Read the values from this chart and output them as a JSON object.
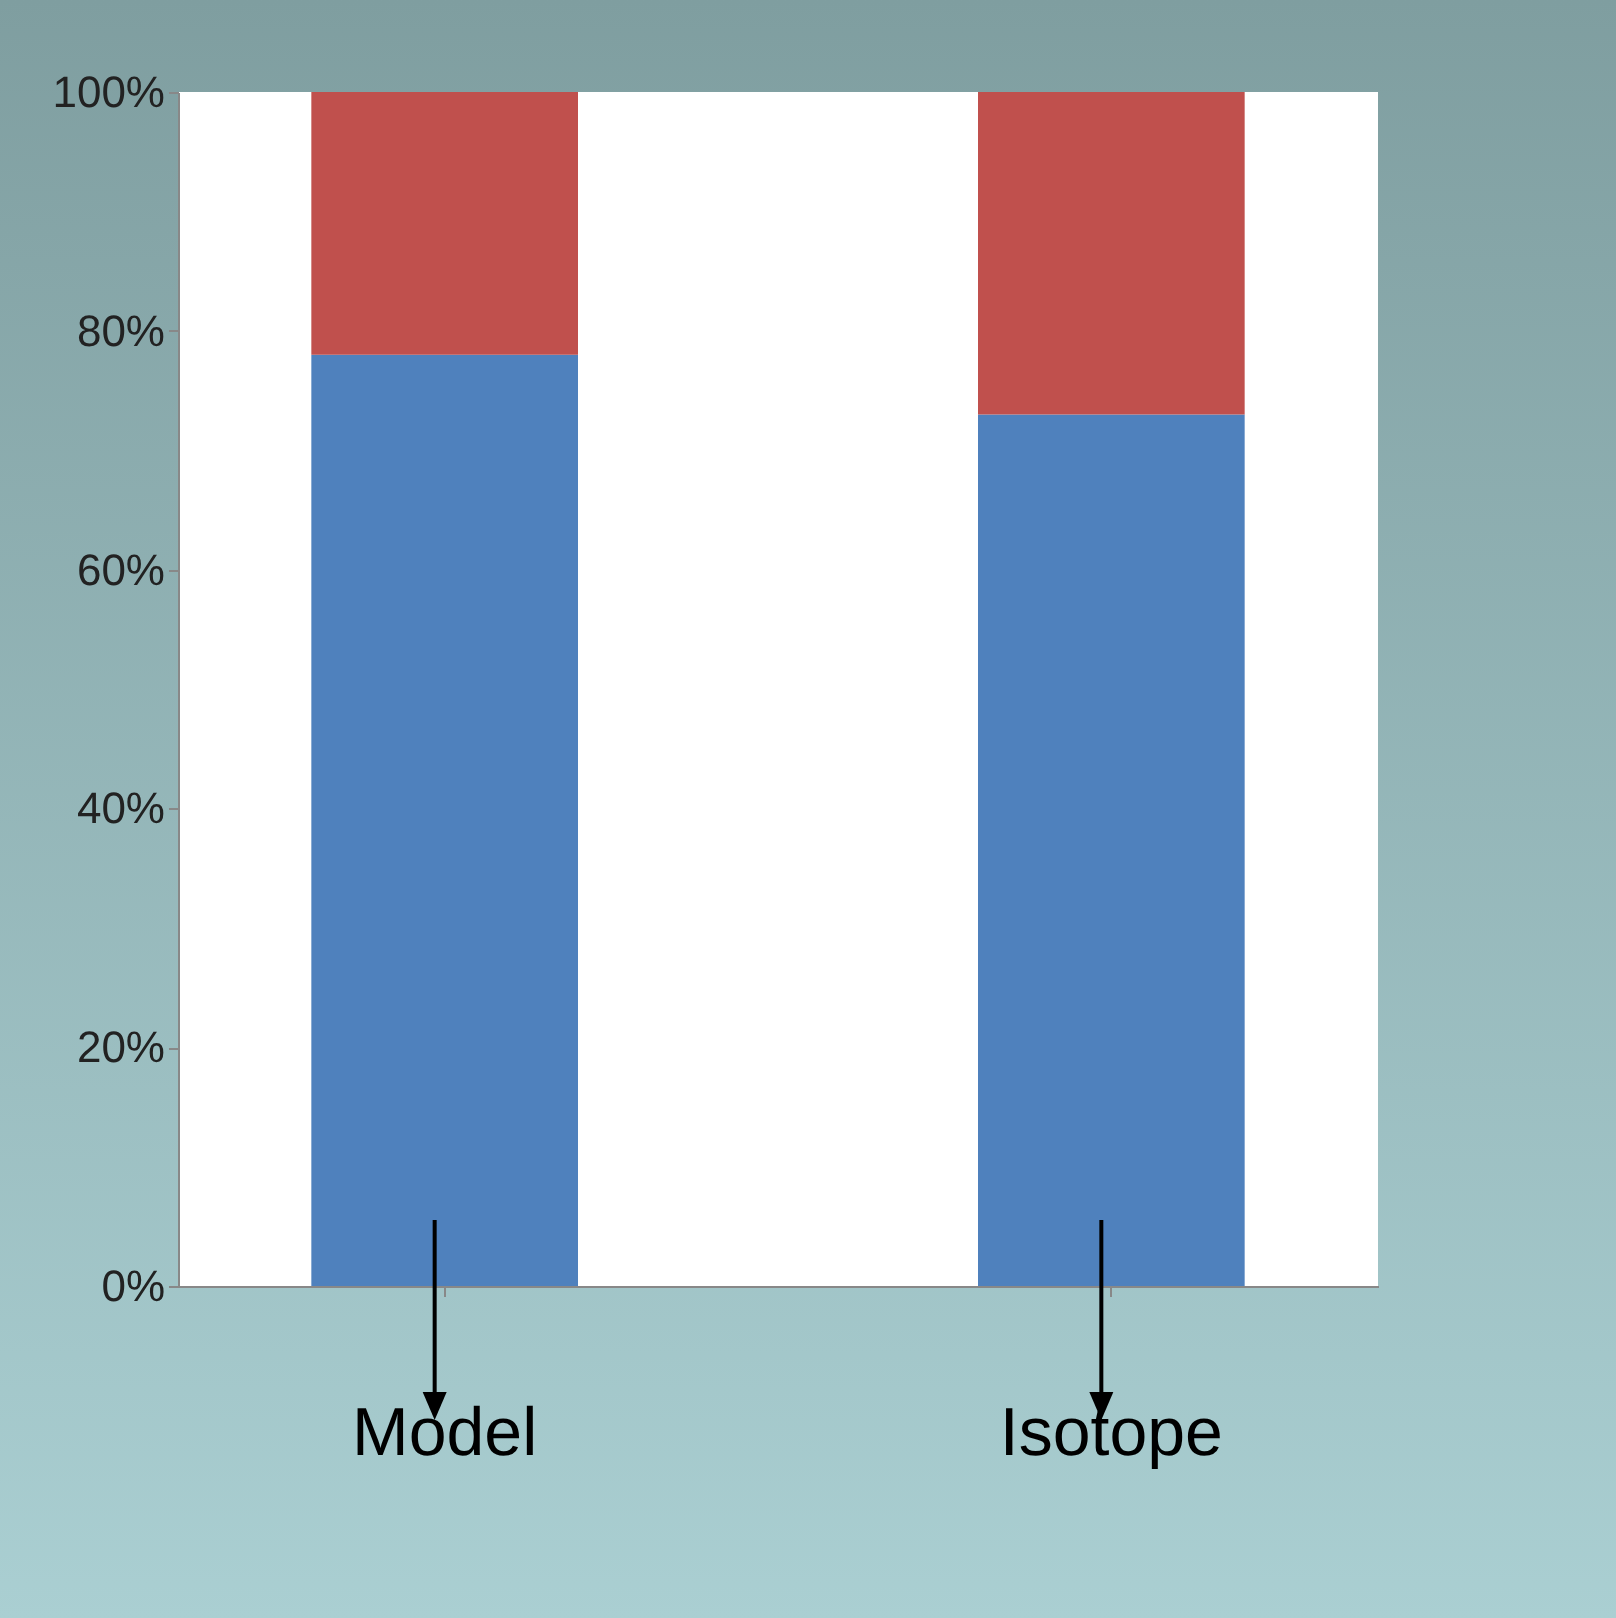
{
  "chart_data": {
    "type": "bar",
    "stacked": true,
    "categories": [
      "Model",
      "Isotope"
    ],
    "series": [
      {
        "color": "#4f81bd",
        "values": [
          78,
          73
        ]
      },
      {
        "color": "#c0504d",
        "values": [
          22,
          27
        ]
      }
    ],
    "ylim": [
      0,
      100
    ],
    "yticks": [
      {
        "value": 0,
        "label": "0%"
      },
      {
        "value": 20,
        "label": "20%"
      },
      {
        "value": 40,
        "label": "40%"
      },
      {
        "value": 60,
        "label": "60%"
      },
      {
        "value": 80,
        "label": "80%"
      },
      {
        "value": 100,
        "label": "100%"
      }
    ]
  }
}
